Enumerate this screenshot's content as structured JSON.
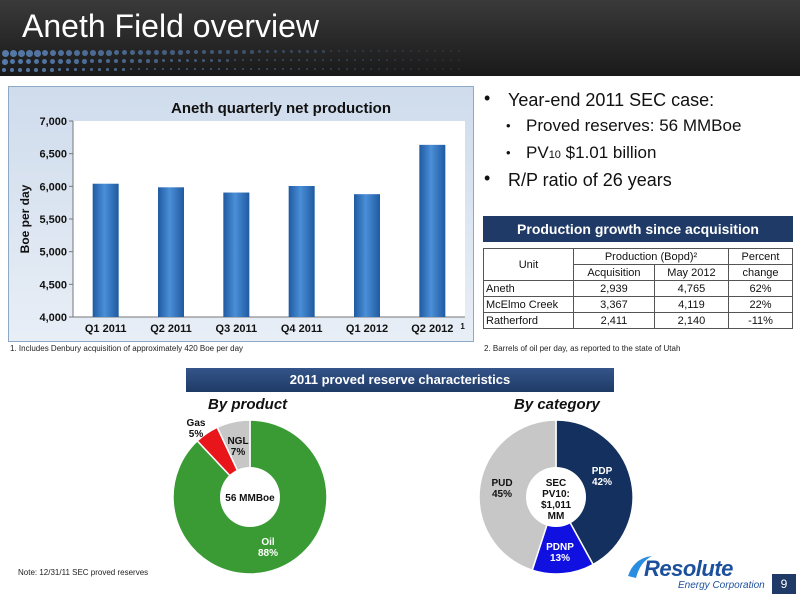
{
  "header": {
    "title": "Aneth Field overview"
  },
  "chart_data": {
    "type": "bar",
    "title": "Aneth quarterly net production",
    "ylabel": "Boe per day",
    "xlabel": "",
    "categories": [
      "Q1 2011",
      "Q2 2011",
      "Q3 2011",
      "Q4 2011",
      "Q1 2012",
      "Q2 2012"
    ],
    "values": [
      6040,
      5985,
      5905,
      6005,
      5880,
      6635
    ],
    "ylim": [
      4000,
      7000
    ],
    "yticks": [
      4000,
      4500,
      5000,
      5500,
      6000,
      6500,
      7000
    ],
    "ytick_labels": [
      "4,000",
      "4,500",
      "5,000",
      "5,500",
      "6,000",
      "6,500",
      "7,000"
    ],
    "grid": false,
    "annotation": "1",
    "color": "#2e6fb7"
  },
  "footnotes": {
    "chart": "1. Includes Denbury acquisition of approximately 420 Boe per day",
    "table": "2. Barrels of oil per day, as reported to the state of Utah"
  },
  "bullets": {
    "b1": "Year-end 2011 SEC case:",
    "b2": "Proved reserves:  56 MMBoe",
    "b3_pre": "PV",
    "b3_sub": "10",
    "b3_post": " $1.01 billion",
    "b4": "R/P ratio of 26 years",
    "marker_large": "•",
    "marker_small": "•"
  },
  "production_table": {
    "title": "Production growth since acquisition",
    "unit_header": "Unit",
    "production_header": "Production (Bopd)²",
    "percent_header_1": "Percent",
    "percent_header_2": "change",
    "acq_header": "Acquisition",
    "may_header": "May 2012",
    "rows": [
      {
        "unit": "Aneth",
        "acquisition": "2,939",
        "may": "4,765",
        "change": "62%"
      },
      {
        "unit": "McElmo Creek",
        "acquisition": "3,367",
        "may": "4,119",
        "change": "22%"
      },
      {
        "unit": "Ratherford",
        "acquisition": "2,411",
        "may": "2,140",
        "change": "-11%"
      }
    ]
  },
  "reserves": {
    "title": "2011 proved reserve characteristics",
    "by_product": {
      "title": "By product",
      "center": "56 MMBoe",
      "slices": [
        {
          "name": "Oil",
          "pct": 88,
          "label": "88%",
          "color": "#3a9b35"
        },
        {
          "name": "Gas",
          "pct": 5,
          "label": "5%",
          "color": "#e8161b"
        },
        {
          "name": "NGL",
          "pct": 7,
          "label": "7%",
          "color": "#c7c7c7"
        }
      ]
    },
    "by_category": {
      "title": "By category",
      "center_lines": [
        "SEC",
        "PV10:",
        "$1,011",
        "MM"
      ],
      "slices": [
        {
          "name": "PDP",
          "pct": 42,
          "label": "42%",
          "color": "#13305e"
        },
        {
          "name": "PDNP",
          "pct": 13,
          "label": "13%",
          "color": "#1010e0"
        },
        {
          "name": "PUD",
          "pct": 45,
          "label": "45%",
          "color": "#c7c7c7"
        }
      ]
    }
  },
  "note": "Note:  12/31/11 SEC proved reserves",
  "logo": {
    "name": "Resolute",
    "sub": "Energy Corporation"
  },
  "page_number": "9"
}
